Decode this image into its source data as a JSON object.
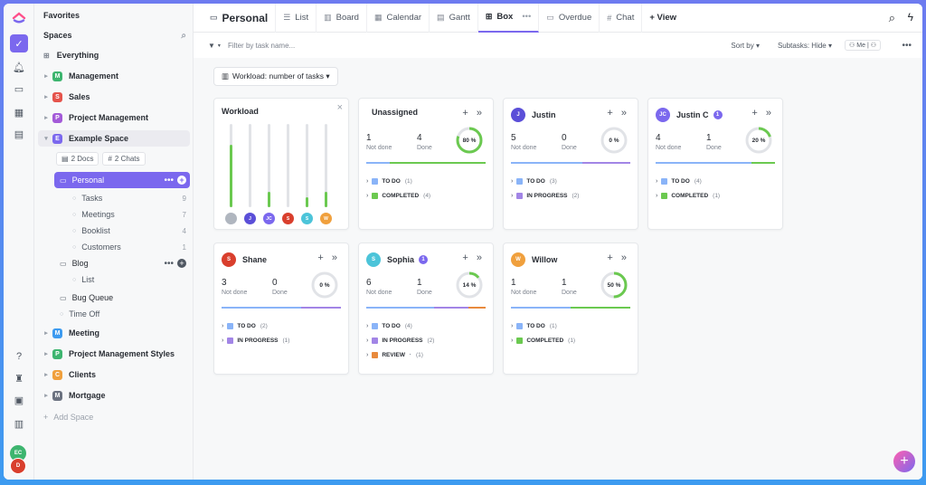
{
  "rail": {
    "avatar_a": "EC",
    "avatar_b": "D"
  },
  "sidebar": {
    "favorites": "Favorites",
    "spaces": "Spaces",
    "everything": "Everything",
    "spaces_list_top": [
      {
        "letter": "M",
        "label": "Management",
        "color": "#3db56f"
      },
      {
        "letter": "S",
        "label": "Sales",
        "color": "#e5534b"
      },
      {
        "letter": "P",
        "label": "Project Management",
        "color": "#a35ad8"
      },
      {
        "letter": "E",
        "label": "Example Space",
        "color": "#7b68ee"
      }
    ],
    "docs_chip": "2 Docs",
    "chats_chip": "2 Chats",
    "personal": "Personal",
    "personal_items": [
      {
        "label": "Tasks",
        "count": "9"
      },
      {
        "label": "Meetings",
        "count": "7"
      },
      {
        "label": "Booklist",
        "count": "4"
      },
      {
        "label": "Customers",
        "count": "1"
      }
    ],
    "blog": "Blog",
    "blog_list": "List",
    "bug_queue": "Bug Queue",
    "time_off": "Time Off",
    "spaces_list_bottom": [
      {
        "letter": "M",
        "label": "Meeting",
        "color": "#3d9bf0"
      },
      {
        "letter": "P",
        "label": "Project Management Styles",
        "color": "#3db56f"
      },
      {
        "letter": "C",
        "label": "Clients",
        "color": "#f0a03d"
      },
      {
        "letter": "M",
        "label": "Mortgage",
        "color": "#6b7280"
      }
    ],
    "add_space": "Add Space"
  },
  "topbar": {
    "title": "Personal",
    "tabs": [
      "List",
      "Board",
      "Calendar",
      "Gantt",
      "Box",
      "Overdue",
      "Chat"
    ],
    "add_view": "+ View"
  },
  "filterbar": {
    "filter_placeholder": "Filter by task name...",
    "sort_by": "Sort by",
    "subtasks": "Subtasks: Hide",
    "me": "Me"
  },
  "workload_button": "Workload: number of tasks",
  "workload_card": {
    "title": "Workload",
    "bars": [
      {
        "initials": "",
        "color": "#b0b6bf",
        "level": 0.75
      },
      {
        "initials": "J",
        "color": "#5b4fd8",
        "level": 0.0
      },
      {
        "initials": "JC",
        "color": "#7b68ee",
        "level": 0.18
      },
      {
        "initials": "S",
        "color": "#d93f2d",
        "level": 0.0
      },
      {
        "initials": "S",
        "color": "#4cc4d9",
        "level": 0.12
      },
      {
        "initials": "W",
        "color": "#f0a03d",
        "level": 0.18
      }
    ]
  },
  "cards": [
    {
      "name": "Unassigned",
      "initials": "",
      "color": "",
      "badge": "",
      "not_done": "1",
      "done": "4",
      "percent": "80 %",
      "pct": 0.8,
      "statuses": [
        {
          "label": "TO DO",
          "count": "(1)",
          "color": "#8ab4f8"
        },
        {
          "label": "COMPLETED",
          "count": "(4)",
          "color": "#6bc950"
        }
      ]
    },
    {
      "name": "Justin",
      "initials": "J",
      "color": "#5b4fd8",
      "badge": "",
      "not_done": "5",
      "done": "0",
      "percent": "0 %",
      "pct": 0.0,
      "statuses": [
        {
          "label": "TO DO",
          "count": "(3)",
          "color": "#8ab4f8"
        },
        {
          "label": "IN PROGRESS",
          "count": "(2)",
          "color": "#a285e6"
        }
      ]
    },
    {
      "name": "Justin C",
      "initials": "JC",
      "color": "#7b68ee",
      "badge": "1",
      "not_done": "4",
      "done": "1",
      "percent": "20 %",
      "pct": 0.2,
      "statuses": [
        {
          "label": "TO DO",
          "count": "(4)",
          "color": "#8ab4f8"
        },
        {
          "label": "COMPLETED",
          "count": "(1)",
          "color": "#6bc950"
        }
      ]
    },
    {
      "name": "Shane",
      "initials": "S",
      "color": "#d93f2d",
      "badge": "",
      "not_done": "3",
      "done": "0",
      "percent": "0 %",
      "pct": 0.0,
      "statuses": [
        {
          "label": "TO DO",
          "count": "(2)",
          "color": "#8ab4f8"
        },
        {
          "label": "IN PROGRESS",
          "count": "(1)",
          "color": "#a285e6"
        }
      ]
    },
    {
      "name": "Sophia",
      "initials": "S",
      "color": "#4cc4d9",
      "badge": "1",
      "not_done": "6",
      "done": "1",
      "percent": "14 %",
      "pct": 0.14,
      "statuses": [
        {
          "label": "TO DO",
          "count": "(4)",
          "color": "#8ab4f8"
        },
        {
          "label": "IN PROGRESS",
          "count": "(2)",
          "color": "#a285e6"
        },
        {
          "label": "REVIEW",
          "count": "(1)",
          "color": "#e88a3d"
        }
      ]
    },
    {
      "name": "Willow",
      "initials": "W",
      "color": "#f0a03d",
      "badge": "",
      "not_done": "1",
      "done": "1",
      "percent": "50 %",
      "pct": 0.5,
      "statuses": [
        {
          "label": "TO DO",
          "count": "(1)",
          "color": "#8ab4f8"
        },
        {
          "label": "COMPLETED",
          "count": "(1)",
          "color": "#6bc950"
        }
      ]
    }
  ],
  "labels": {
    "not_done": "Not done",
    "done": "Done"
  },
  "colors": {
    "accent": "#7b68ee",
    "green": "#6bc950",
    "track": "#e1e3e7"
  }
}
